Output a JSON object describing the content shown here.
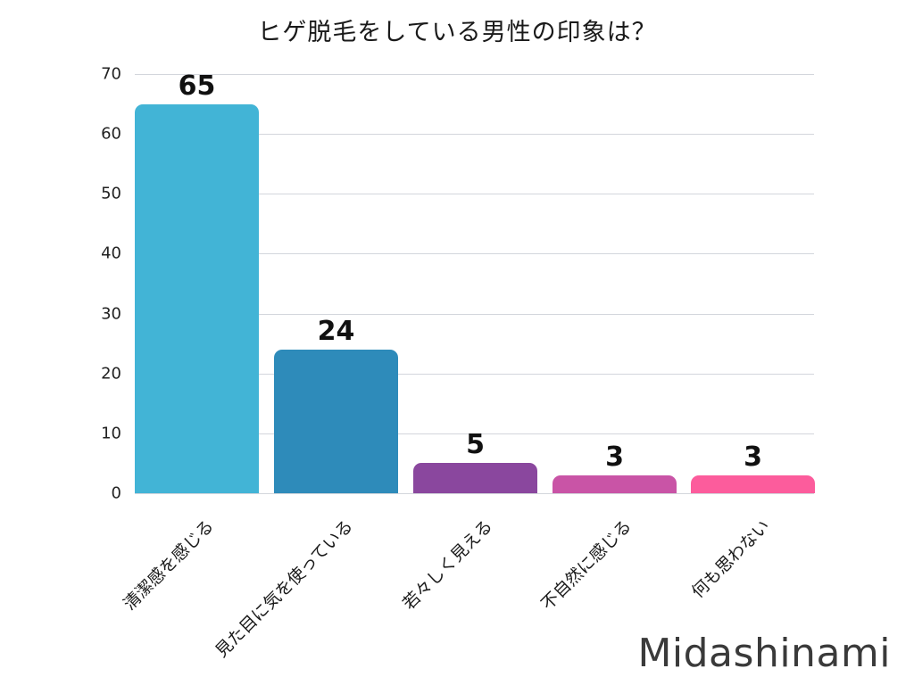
{
  "title": "ヒゲ脱毛をしている男性の印象は？",
  "brand": "Midashinami",
  "axis": {
    "y_ticks": [
      "0",
      "10",
      "20",
      "30",
      "40",
      "50",
      "60",
      "70"
    ]
  },
  "bars": [
    {
      "label": "清潔感を感じる",
      "value_label": "65",
      "color": "#42b4d6"
    },
    {
      "label": "見た目に気を使っている",
      "value_label": "24",
      "color": "#2e8bba"
    },
    {
      "label": "若々しく見える",
      "value_label": "5",
      "color": "#8a479e"
    },
    {
      "label": "不自然に感じる",
      "value_label": "3",
      "color": "#c954a6"
    },
    {
      "label": "何も思わない",
      "value_label": "3",
      "color": "#fc5c9c"
    }
  ],
  "chart_data": {
    "type": "bar",
    "title": "ヒゲ脱毛をしている男性の印象は？",
    "categories": [
      "清潔感を感じる",
      "見た目に気を使っている",
      "若々しく見える",
      "不自然に感じる",
      "何も思わない"
    ],
    "values": [
      65,
      24,
      5,
      3,
      3
    ],
    "colors": [
      "#42b4d6",
      "#2e8bba",
      "#8a479e",
      "#c954a6",
      "#fc5c9c"
    ],
    "xlabel": "",
    "ylabel": "",
    "ylim": [
      0,
      70
    ],
    "yticks": [
      0,
      10,
      20,
      30,
      40,
      50,
      60,
      70
    ],
    "grid": true,
    "data_labels": true,
    "legend": "none",
    "watermark": "Midashinami"
  }
}
